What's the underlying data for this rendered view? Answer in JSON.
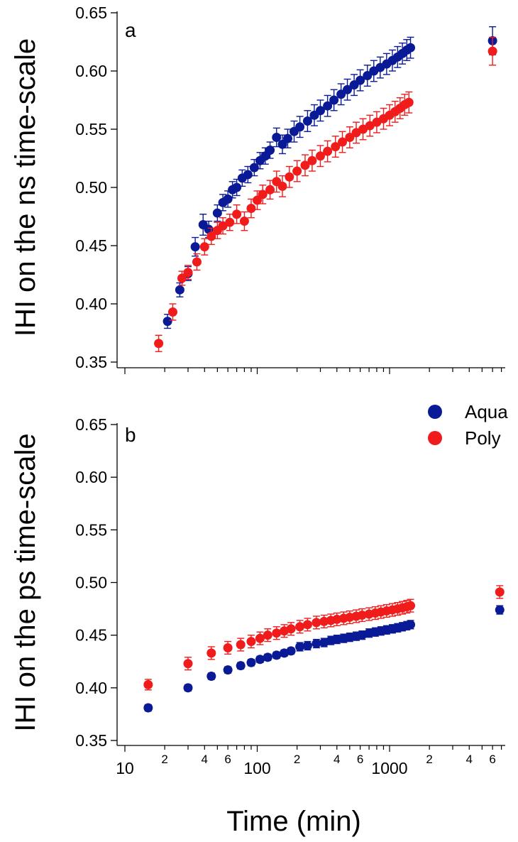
{
  "chart_data": [
    {
      "panel": "a",
      "type": "scatter",
      "ylabel": "IHI on the ns time-scale",
      "xlabel": "",
      "xscale": "log",
      "xlim": [
        10,
        7000
      ],
      "ylim": [
        0.35,
        0.65
      ],
      "yticks": [
        "0.35",
        "0.40",
        "0.45",
        "0.50",
        "0.55",
        "0.60",
        "0.65"
      ],
      "legend": false,
      "series": [
        {
          "name": "Aqua",
          "color": "#0a1a96",
          "points": [
            [
              21,
              0.385,
              0.006
            ],
            [
              26,
              0.412,
              0.006
            ],
            [
              30,
              0.426,
              0.006
            ],
            [
              34,
              0.449,
              0.008
            ],
            [
              39,
              0.468,
              0.009
            ],
            [
              43,
              0.464,
              0.007
            ],
            [
              50,
              0.478,
              0.007
            ],
            [
              55,
              0.487,
              0.007
            ],
            [
              60,
              0.49,
              0.007
            ],
            [
              65,
              0.498,
              0.007
            ],
            [
              70,
              0.5,
              0.007
            ],
            [
              77,
              0.508,
              0.007
            ],
            [
              85,
              0.511,
              0.007
            ],
            [
              95,
              0.517,
              0.007
            ],
            [
              105,
              0.523,
              0.007
            ],
            [
              115,
              0.527,
              0.007
            ],
            [
              125,
              0.532,
              0.007
            ],
            [
              140,
              0.543,
              0.008
            ],
            [
              155,
              0.537,
              0.008
            ],
            [
              170,
              0.542,
              0.008
            ],
            [
              190,
              0.548,
              0.009
            ],
            [
              210,
              0.552,
              0.009
            ],
            [
              240,
              0.557,
              0.009
            ],
            [
              270,
              0.562,
              0.009
            ],
            [
              300,
              0.566,
              0.009
            ],
            [
              340,
              0.57,
              0.009
            ],
            [
              380,
              0.575,
              0.009
            ],
            [
              430,
              0.58,
              0.009
            ],
            [
              480,
              0.584,
              0.009
            ],
            [
              540,
              0.588,
              0.009
            ],
            [
              600,
              0.592,
              0.009
            ],
            [
              680,
              0.596,
              0.009
            ],
            [
              760,
              0.6,
              0.009
            ],
            [
              850,
              0.603,
              0.009
            ],
            [
              950,
              0.606,
              0.009
            ],
            [
              1050,
              0.609,
              0.009
            ],
            [
              1150,
              0.612,
              0.009
            ],
            [
              1250,
              0.615,
              0.009
            ],
            [
              1350,
              0.618,
              0.009
            ],
            [
              1440,
              0.62,
              0.009
            ],
            [
              6000,
              0.626,
              0.012
            ]
          ]
        },
        {
          "name": "Poly",
          "color": "#f01c1c",
          "points": [
            [
              18,
              0.366,
              0.007
            ],
            [
              23,
              0.393,
              0.007
            ],
            [
              27,
              0.422,
              0.006
            ],
            [
              30,
              0.427,
              0.006
            ],
            [
              35,
              0.436,
              0.007
            ],
            [
              40,
              0.449,
              0.007
            ],
            [
              45,
              0.458,
              0.007
            ],
            [
              50,
              0.463,
              0.007
            ],
            [
              55,
              0.467,
              0.007
            ],
            [
              62,
              0.47,
              0.007
            ],
            [
              70,
              0.477,
              0.008
            ],
            [
              80,
              0.471,
              0.008
            ],
            [
              90,
              0.482,
              0.008
            ],
            [
              100,
              0.489,
              0.008
            ],
            [
              110,
              0.494,
              0.008
            ],
            [
              125,
              0.498,
              0.008
            ],
            [
              140,
              0.505,
              0.009
            ],
            [
              155,
              0.501,
              0.009
            ],
            [
              175,
              0.509,
              0.009
            ],
            [
              200,
              0.514,
              0.009
            ],
            [
              230,
              0.519,
              0.009
            ],
            [
              260,
              0.523,
              0.009
            ],
            [
              300,
              0.527,
              0.009
            ],
            [
              340,
              0.531,
              0.009
            ],
            [
              390,
              0.535,
              0.009
            ],
            [
              440,
              0.539,
              0.009
            ],
            [
              500,
              0.543,
              0.009
            ],
            [
              560,
              0.547,
              0.009
            ],
            [
              630,
              0.55,
              0.009
            ],
            [
              710,
              0.553,
              0.009
            ],
            [
              800,
              0.556,
              0.009
            ],
            [
              900,
              0.559,
              0.009
            ],
            [
              1000,
              0.562,
              0.009
            ],
            [
              1100,
              0.565,
              0.009
            ],
            [
              1200,
              0.568,
              0.009
            ],
            [
              1300,
              0.571,
              0.009
            ],
            [
              1400,
              0.573,
              0.009
            ],
            [
              6000,
              0.617,
              0.012
            ]
          ]
        }
      ]
    },
    {
      "panel": "b",
      "type": "scatter",
      "ylabel": "IHI on the ps time-scale",
      "xlabel": "Time (min)",
      "xscale": "log",
      "xlim": [
        10,
        7000
      ],
      "ylim": [
        0.35,
        0.65
      ],
      "yticks": [
        "0.35",
        "0.40",
        "0.45",
        "0.50",
        "0.55",
        "0.60",
        "0.65"
      ],
      "xticks": [
        {
          "value": 10,
          "label": "10",
          "major": true
        },
        {
          "value": 20,
          "label": "2",
          "major": false
        },
        {
          "value": 40,
          "label": "4",
          "major": false
        },
        {
          "value": 60,
          "label": "6",
          "major": false
        },
        {
          "value": 100,
          "label": "100",
          "major": true
        },
        {
          "value": 200,
          "label": "2",
          "major": false
        },
        {
          "value": 400,
          "label": "4",
          "major": false
        },
        {
          "value": 600,
          "label": "6",
          "major": false
        },
        {
          "value": 1000,
          "label": "1000",
          "major": true
        },
        {
          "value": 2000,
          "label": "2",
          "major": false
        },
        {
          "value": 4000,
          "label": "4",
          "major": false
        },
        {
          "value": 6000,
          "label": "6",
          "major": false
        }
      ],
      "legend": true,
      "legend_position": "top-right",
      "series": [
        {
          "name": "Aqua",
          "color": "#0a1a96",
          "points": [
            [
              15,
              0.381,
              0.003
            ],
            [
              30,
              0.4,
              0.003
            ],
            [
              45,
              0.411,
              0.003
            ],
            [
              60,
              0.417,
              0.003
            ],
            [
              75,
              0.421,
              0.003
            ],
            [
              90,
              0.424,
              0.003
            ],
            [
              105,
              0.427,
              0.003
            ],
            [
              120,
              0.429,
              0.003
            ],
            [
              140,
              0.431,
              0.003
            ],
            [
              160,
              0.433,
              0.003
            ],
            [
              180,
              0.435,
              0.003
            ],
            [
              210,
              0.439,
              0.004
            ],
            [
              240,
              0.44,
              0.004
            ],
            [
              280,
              0.442,
              0.004
            ],
            [
              320,
              0.443,
              0.004
            ],
            [
              360,
              0.445,
              0.004
            ],
            [
              400,
              0.446,
              0.004
            ],
            [
              450,
              0.447,
              0.004
            ],
            [
              500,
              0.448,
              0.004
            ],
            [
              560,
              0.449,
              0.004
            ],
            [
              620,
              0.45,
              0.004
            ],
            [
              700,
              0.452,
              0.004
            ],
            [
              780,
              0.453,
              0.004
            ],
            [
              860,
              0.454,
              0.004
            ],
            [
              950,
              0.455,
              0.004
            ],
            [
              1050,
              0.456,
              0.004
            ],
            [
              1150,
              0.457,
              0.004
            ],
            [
              1250,
              0.458,
              0.004
            ],
            [
              1350,
              0.459,
              0.004
            ],
            [
              1440,
              0.46,
              0.004
            ],
            [
              6800,
              0.474,
              0.004
            ]
          ]
        },
        {
          "name": "Poly",
          "color": "#f01c1c",
          "points": [
            [
              15,
              0.403,
              0.005
            ],
            [
              30,
              0.423,
              0.006
            ],
            [
              45,
              0.433,
              0.006
            ],
            [
              60,
              0.438,
              0.006
            ],
            [
              75,
              0.441,
              0.006
            ],
            [
              90,
              0.444,
              0.006
            ],
            [
              105,
              0.447,
              0.006
            ],
            [
              120,
              0.45,
              0.006
            ],
            [
              140,
              0.452,
              0.006
            ],
            [
              160,
              0.454,
              0.006
            ],
            [
              180,
              0.456,
              0.006
            ],
            [
              210,
              0.458,
              0.006
            ],
            [
              240,
              0.46,
              0.006
            ],
            [
              280,
              0.462,
              0.006
            ],
            [
              320,
              0.463,
              0.006
            ],
            [
              360,
              0.464,
              0.006
            ],
            [
              400,
              0.465,
              0.006
            ],
            [
              450,
              0.466,
              0.006
            ],
            [
              500,
              0.467,
              0.006
            ],
            [
              560,
              0.468,
              0.006
            ],
            [
              620,
              0.469,
              0.006
            ],
            [
              700,
              0.47,
              0.006
            ],
            [
              780,
              0.471,
              0.006
            ],
            [
              860,
              0.472,
              0.006
            ],
            [
              950,
              0.473,
              0.006
            ],
            [
              1050,
              0.474,
              0.006
            ],
            [
              1150,
              0.475,
              0.006
            ],
            [
              1250,
              0.476,
              0.006
            ],
            [
              1350,
              0.477,
              0.006
            ],
            [
              1440,
              0.478,
              0.006
            ],
            [
              6800,
              0.491,
              0.006
            ]
          ]
        }
      ]
    }
  ]
}
